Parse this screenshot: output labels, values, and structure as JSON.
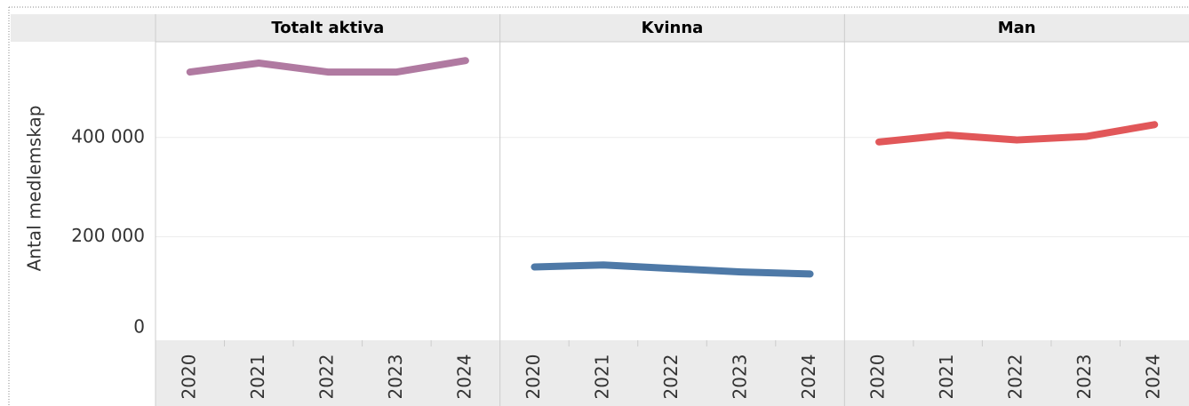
{
  "chart_data": {
    "type": "line",
    "y_label": "Antal medlemskap",
    "categories": [
      "2020",
      "2021",
      "2022",
      "2023",
      "2024"
    ],
    "series": [
      {
        "name": "Totalt aktiva",
        "color": "#b07aa1",
        "values": [
          532000,
          550000,
          532000,
          532000,
          555000
        ]
      },
      {
        "name": "Kvinna",
        "color": "#4e79a7",
        "values": [
          139000,
          143000,
          136000,
          129000,
          125000
        ]
      },
      {
        "name": "Man",
        "color": "#e15759",
        "values": [
          391000,
          405000,
          395000,
          402000,
          426000
        ]
      }
    ],
    "ylim": [
      -8700,
      593000
    ],
    "yticks": [
      0,
      {
        "value": 200000,
        "label": "200 000"
      },
      {
        "value": 400000,
        "label": "400 000"
      }
    ],
    "grid": true
  }
}
